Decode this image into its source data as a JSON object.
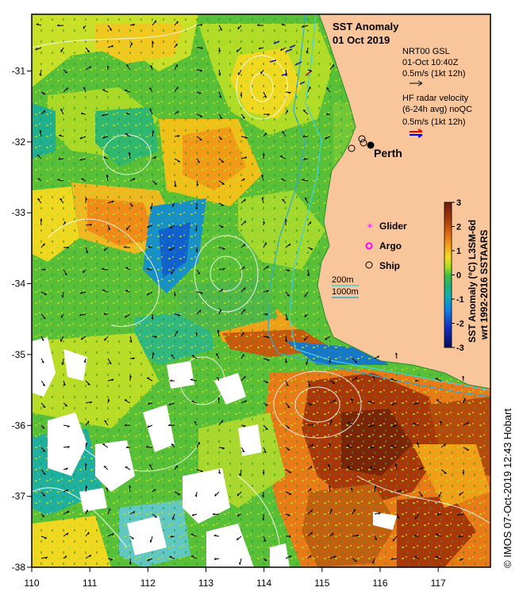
{
  "header": {
    "title": "SST Anomaly",
    "date": "01 Oct 2019"
  },
  "axes": {
    "x_ticks": [
      "110",
      "111",
      "112",
      "113",
      "114",
      "115",
      "116",
      "117"
    ],
    "y_ticks": [
      "-31",
      "-32",
      "-33",
      "-34",
      "-35",
      "-36",
      "-37",
      "-38"
    ],
    "lon_range": [
      110,
      117.9
    ],
    "lat_range": [
      -38,
      -30.2
    ]
  },
  "places": {
    "city": "Perth"
  },
  "current_legend": {
    "nrt_line1": "NRT00 GSL",
    "nrt_line2": "01-Oct 10:40Z",
    "nrt_line3": "0.5m/s (1kt 12h)",
    "hf_line1": "HF radar velocity",
    "hf_line2": "(6-24h avg) noQC",
    "hf_line3": "0.5m/s (1kt 12h)"
  },
  "platform_legend": {
    "glider": "Glider",
    "argo": "Argo",
    "ship": "Ship"
  },
  "bathymetry_legend": {
    "contour_200": "200m",
    "contour_1000": "1000m"
  },
  "colorbar": {
    "ticks": [
      "3",
      "2",
      "1",
      "0",
      "-1",
      "-2",
      "-3"
    ],
    "label_line1": "SST Anomaly (°C) L3SM-6d",
    "label_line2": "wrt 1992-2016 SSTAARS",
    "range": [
      -3,
      3
    ]
  },
  "credit": "© IMOS 07-Oct-2019 12:43 Hobart",
  "colors": {
    "land": "#f9c69c",
    "contour_200": "#40d0e0",
    "contour_1000": "#30a8d0",
    "nrt_arrow": "#000000",
    "hf_arrow_a": "#ff0000",
    "hf_arrow_b": "#0000ff",
    "glider_marker": "#ff40ff",
    "argo_marker": "#ff00ff"
  }
}
